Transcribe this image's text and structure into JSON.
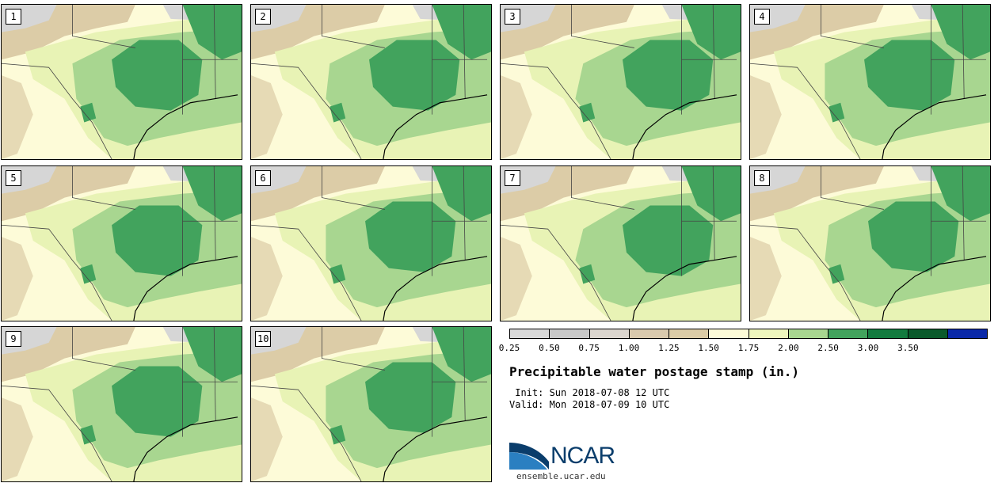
{
  "stamps": [
    {
      "label": "1"
    },
    {
      "label": "2"
    },
    {
      "label": "3"
    },
    {
      "label": "4"
    },
    {
      "label": "5"
    },
    {
      "label": "6"
    },
    {
      "label": "7"
    },
    {
      "label": "8"
    },
    {
      "label": "9"
    },
    {
      "label": "10"
    }
  ],
  "colorbar": {
    "colors": [
      "#d9d9d9",
      "#c8c8c8",
      "#dcd6cf",
      "#d9c9ad",
      "#dccca7",
      "#fdfbd8",
      "#eef6bd",
      "#a8d690",
      "#42a35d",
      "#137b3f",
      "#0a5a2b",
      "#0a29a8"
    ],
    "tick_labels": [
      "0.25",
      "0.50",
      "0.75",
      "1.00",
      "1.25",
      "1.50",
      "1.75",
      "2.00",
      "2.50",
      "3.00",
      "3.50"
    ]
  },
  "legend_colors": {
    "tan": "#dccca7",
    "cream": "#fdfbd8",
    "light_green": "#e8f3b5",
    "mid_green": "#a8d690",
    "dark_green": "#42a35d",
    "gray": "#d6d6d6"
  },
  "title": "Precipitable water postage stamp (in.)",
  "init_label": " Init: Sun 2018-07-08 12 UTC",
  "valid_label": "Valid: Mon 2018-07-09 10 UTC",
  "logo_text": "NCAR",
  "site": "ensemble.ucar.edu"
}
